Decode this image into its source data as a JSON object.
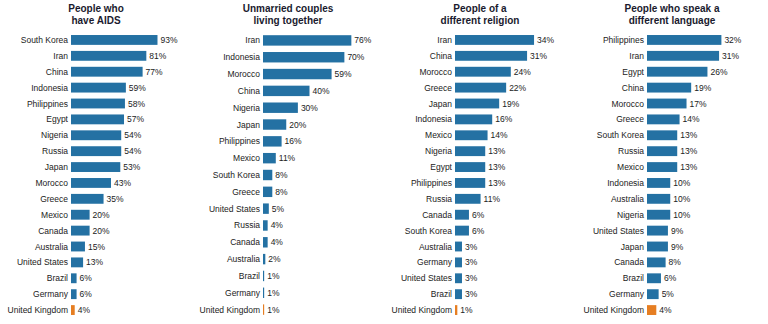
{
  "chart_data": [
    {
      "type": "bar",
      "orientation": "horizontal",
      "title": "People who\nhave AIDS",
      "categories": [
        "South Korea",
        "Iran",
        "China",
        "Indonesia",
        "Philippines",
        "Egypt",
        "Nigeria",
        "Russia",
        "Japan",
        "Morocco",
        "Greece",
        "Mexico",
        "Canada",
        "Australia",
        "United States",
        "Brazil",
        "Germany",
        "United Kingdom"
      ],
      "values": [
        93,
        81,
        77,
        59,
        58,
        57,
        54,
        54,
        53,
        43,
        35,
        20,
        20,
        15,
        13,
        6,
        6,
        4
      ],
      "value_labels": [
        "93%",
        "81%",
        "77%",
        "59%",
        "58%",
        "57%",
        "54%",
        "54%",
        "53%",
        "43%",
        "35%",
        "20%",
        "20%",
        "15%",
        "13%",
        "6%",
        "6%",
        "4%"
      ],
      "colors": [
        "#2471a3",
        "#2471a3",
        "#2471a3",
        "#2471a3",
        "#2471a3",
        "#2471a3",
        "#2471a3",
        "#2471a3",
        "#2471a3",
        "#2471a3",
        "#2471a3",
        "#2471a3",
        "#2471a3",
        "#2471a3",
        "#2471a3",
        "#2471a3",
        "#2471a3",
        "#e67e22"
      ],
      "xlim": [
        0,
        100
      ],
      "data_labels": true,
      "tick_labels": "y",
      "grid": false
    },
    {
      "type": "bar",
      "orientation": "horizontal",
      "title": "Unmarried couples\nliving together",
      "categories": [
        "Iran",
        "Indonesia",
        "Morocco",
        "China",
        "Nigeria",
        "Japan",
        "Philippines",
        "Mexico",
        "South Korea",
        "Greece",
        "United States",
        "Russia",
        "Canada",
        "Australia",
        "Brazil",
        "Germany",
        "United Kingdom"
      ],
      "values": [
        76,
        70,
        59,
        40,
        30,
        20,
        16,
        11,
        8,
        8,
        5,
        4,
        4,
        2,
        1,
        1,
        1
      ],
      "value_labels": [
        "76%",
        "70%",
        "59%",
        "40%",
        "30%",
        "20%",
        "16%",
        "11%",
        "8%",
        "8%",
        "5%",
        "4%",
        "4%",
        "2%",
        "1%",
        "1%",
        "1%"
      ],
      "colors": [
        "#2471a3",
        "#2471a3",
        "#2471a3",
        "#2471a3",
        "#2471a3",
        "#2471a3",
        "#2471a3",
        "#2471a3",
        "#2471a3",
        "#2471a3",
        "#2471a3",
        "#2471a3",
        "#2471a3",
        "#2471a3",
        "#2471a3",
        "#2471a3",
        "#e67e22"
      ],
      "xlim": [
        0,
        80
      ],
      "data_labels": true,
      "tick_labels": "y",
      "grid": false
    },
    {
      "type": "bar",
      "orientation": "horizontal",
      "title": "People of a\ndifferent religion",
      "categories": [
        "Iran",
        "China",
        "Morocco",
        "Greece",
        "Japan",
        "Indonesia",
        "Mexico",
        "Nigeria",
        "Egypt",
        "Philippines",
        "Russia",
        "Canada",
        "South Korea",
        "Australia",
        "Germany",
        "United States",
        "Brazil",
        "United Kingdom"
      ],
      "values": [
        34,
        31,
        24,
        22,
        19,
        16,
        14,
        13,
        13,
        13,
        11,
        6,
        6,
        3,
        3,
        3,
        3,
        1
      ],
      "value_labels": [
        "34%",
        "31%",
        "24%",
        "22%",
        "19%",
        "16%",
        "14%",
        "13%",
        "13%",
        "13%",
        "11%",
        "6%",
        "6%",
        "3%",
        "3%",
        "3%",
        "3%",
        "1%"
      ],
      "colors": [
        "#2471a3",
        "#2471a3",
        "#2471a3",
        "#2471a3",
        "#2471a3",
        "#2471a3",
        "#2471a3",
        "#2471a3",
        "#2471a3",
        "#2471a3",
        "#2471a3",
        "#2471a3",
        "#2471a3",
        "#2471a3",
        "#2471a3",
        "#2471a3",
        "#2471a3",
        "#e67e22"
      ],
      "xlim": [
        0,
        40
      ],
      "data_labels": true,
      "tick_labels": "y",
      "grid": false
    },
    {
      "type": "bar",
      "orientation": "horizontal",
      "title": "People who speak a\ndifferent language",
      "categories": [
        "Philippines",
        "Iran",
        "Egypt",
        "China",
        "Morocco",
        "Greece",
        "South Korea",
        "Russia",
        "Mexico",
        "Indonesia",
        "Australia",
        "Nigeria",
        "United States",
        "Japan",
        "Canada",
        "Brazil",
        "Germany",
        "United Kingdom"
      ],
      "values": [
        32,
        31,
        26,
        19,
        17,
        14,
        13,
        13,
        13,
        10,
        10,
        10,
        9,
        9,
        8,
        6,
        5,
        4
      ],
      "value_labels": [
        "32%",
        "31%",
        "26%",
        "19%",
        "17%",
        "14%",
        "13%",
        "13%",
        "13%",
        "10%",
        "10%",
        "10%",
        "9%",
        "9%",
        "8%",
        "6%",
        "5%",
        "4%"
      ],
      "colors": [
        "#2471a3",
        "#2471a3",
        "#2471a3",
        "#2471a3",
        "#2471a3",
        "#2471a3",
        "#2471a3",
        "#2471a3",
        "#2471a3",
        "#2471a3",
        "#2471a3",
        "#2471a3",
        "#2471a3",
        "#2471a3",
        "#2471a3",
        "#2471a3",
        "#2471a3",
        "#e67e22"
      ],
      "xlim": [
        0,
        40
      ],
      "data_labels": true,
      "tick_labels": "y",
      "grid": false
    }
  ]
}
